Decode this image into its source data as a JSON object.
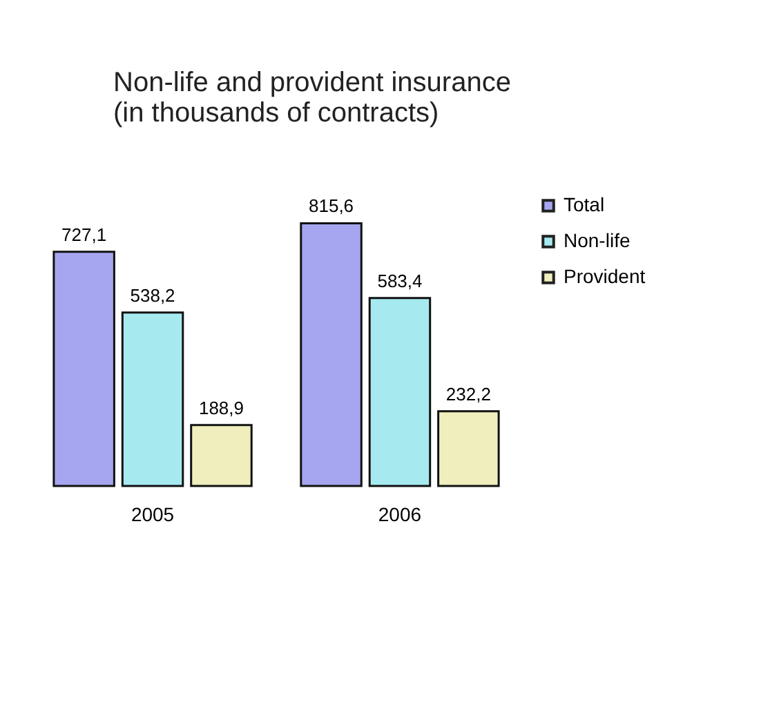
{
  "chart_data": {
    "type": "bar",
    "title": "Non-life and provident insurance\n(in thousands of contracts)",
    "categories": [
      "2005",
      "2006"
    ],
    "series": [
      {
        "name": "Total",
        "color": "#a6a6f0",
        "values": [
          727.1,
          815.6
        ],
        "value_labels": [
          "727,1",
          "815,6"
        ]
      },
      {
        "name": "Non-life",
        "color": "#a6eaf0",
        "values": [
          538.2,
          583.4
        ],
        "value_labels": [
          "538,2",
          "583,4"
        ]
      },
      {
        "name": "Provident",
        "color": "#f0eebd",
        "values": [
          188.9,
          232.2
        ],
        "value_labels": [
          "188,9",
          "232,2"
        ]
      }
    ],
    "legend": "right"
  }
}
